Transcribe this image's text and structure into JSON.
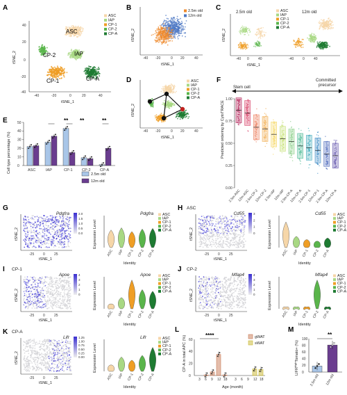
{
  "colors": {
    "ASC": "#f6d6a8",
    "IAP": "#a8d883",
    "CP-1": "#ef9e25",
    "CP-2": "#5ab54b",
    "CP-A": "#1e7b32",
    "2.5m old": "#ef8a2c",
    "12m old": "#4d78c4",
    "gWAT": "#c97b57",
    "sWAT": "#c9b832",
    "bar_young": "#a9c6e8",
    "bar_old": "#6a3d8f"
  },
  "panels": {
    "A": {
      "label": "A",
      "xlabel": "tSNE_1",
      "ylabel": "tSNE_2",
      "xticks": [
        "-40",
        "-20",
        "0",
        "20",
        "40"
      ],
      "yticks": [
        "40",
        "20",
        "0",
        "-20",
        "-40"
      ],
      "cluster_labels": [
        "ASC",
        "IAP",
        "CP-2",
        "CP-1",
        "CP-A"
      ],
      "legend": [
        "ASC",
        "IAP",
        "CP-1",
        "CP-2",
        "CP-A"
      ]
    },
    "B": {
      "label": "B",
      "xlabel": "tSNE_1",
      "ylabel": "tSNE_2",
      "xticks": [
        "-40",
        "-20",
        "0",
        "20",
        "40"
      ],
      "yticks": [
        "40",
        "20",
        "0",
        "-20",
        "-40"
      ],
      "legend": [
        "2.5m old",
        "12m old"
      ]
    },
    "C": {
      "label": "C",
      "xlabel": "tSNE_1",
      "ylabel": "tSNE_2",
      "titles": [
        "2.5m old",
        "12m old"
      ],
      "xticks": [
        "-40",
        "0",
        "40"
      ],
      "yticks": [
        "40",
        "20",
        "0",
        "-20",
        "-40"
      ],
      "legend": [
        "ASC",
        "IAP",
        "CP-1",
        "CP-2",
        "CP-A"
      ]
    },
    "D": {
      "label": "D",
      "xlabel": "tSNE_1",
      "ylabel": "tSNE_2",
      "xticks": [
        "-40",
        "-20",
        "0",
        "20",
        "40"
      ],
      "yticks": [
        "40",
        "20",
        "0",
        "-20",
        "-40"
      ],
      "legend": [
        "ASC",
        "IAP",
        "CP-1",
        "CP-2",
        "CP-A"
      ]
    },
    "E": {
      "label": "E",
      "ylabel": "Cell type percentage (%)",
      "sig": [
        "**",
        "**",
        "**"
      ]
    },
    "F": {
      "label": "F",
      "ylabel": "Predicted ordering by CytoTRACE",
      "left_note": "Stem cell",
      "right_note1": "Committed",
      "right_note2": "precursor",
      "yticks": [
        "1.00",
        "0.75",
        "0.50",
        "0.25",
        "0.00"
      ]
    },
    "G": {
      "label": "G",
      "gene": "Pdgfra",
      "scale": [
        "2.0",
        "1.5",
        "1.0",
        "0.5",
        "0.0"
      ]
    },
    "H": {
      "label": "H",
      "tag": "ASC",
      "gene": "Cd55",
      "scale": [
        "3",
        "2",
        "1",
        "0"
      ]
    },
    "I": {
      "label": "I",
      "tag": "CP-1",
      "gene": "Apoe",
      "scale": [
        "4",
        "3",
        "2",
        "1",
        "0"
      ]
    },
    "J": {
      "label": "J",
      "tag": "CP-2",
      "gene": "Mfap4",
      "scale": [
        "4",
        "3",
        "2",
        "1",
        "0"
      ]
    },
    "K": {
      "label": "K",
      "tag": "CP-A",
      "gene": "Lifr",
      "scale": [
        "1.25",
        "1.00",
        "0.75",
        "0.50",
        "0.25",
        "0.00"
      ]
    },
    "L": {
      "label": "L",
      "ylabel": "CP-A in total APC (%)",
      "xlabel": "Age (month)",
      "sig": "****",
      "yticks": [
        "60",
        "40",
        "20",
        "0"
      ]
    },
    "M": {
      "label": "M",
      "ylabel": "LIFR$^{high}$Tomato+ (%)",
      "sig": "**",
      "yticks": [
        "100",
        "80",
        "60",
        "40",
        "20",
        "0"
      ]
    }
  },
  "violin_common": {
    "ylabel": "Expression Level",
    "xlabel": "Identity",
    "categories": [
      "ASC",
      "IAP",
      "CP-1",
      "CP-2",
      "CP-A"
    ],
    "tsne_xlabel": "tSNE_1",
    "tsne_ylabel": "tSNE_2",
    "tsne_xticks": [
      "-25",
      "0",
      "25"
    ]
  },
  "chart_data": [
    {
      "panel": "E",
      "type": "bar",
      "categories": [
        "ASC",
        "IAP",
        "CP-1",
        "CP-2",
        "CP-A"
      ],
      "ylim": [
        0,
        50
      ],
      "yticks": [
        0,
        10,
        20,
        30,
        40,
        50
      ],
      "series": [
        {
          "name": "2.5m old",
          "values": [
            22,
            27,
            43,
            9,
            1
          ]
        },
        {
          "name": "12m old",
          "values": [
            23,
            34,
            15,
            8,
            20
          ]
        }
      ]
    },
    {
      "panel": "F",
      "type": "box",
      "categories": [
        "2.5m-ASC",
        "12m-ASC",
        "2.5m-CP-2",
        "12m-CP-2",
        "2.5m-IAP",
        "12m-IAP",
        "2.5m-CP-A",
        "12m-CP-A",
        "2.5m-CP-1",
        "12m-CP-1",
        "2.5m-CP-A",
        "12m-CP-A"
      ],
      "medians": [
        0.87,
        0.84,
        0.68,
        0.66,
        0.6,
        0.55,
        0.52,
        0.47,
        0.45,
        0.42,
        0.38,
        0.36
      ],
      "ylim": [
        0,
        1
      ]
    },
    {
      "panel": "L",
      "type": "bar",
      "xlabel": "Age (month)",
      "ylabel": "CP-A in total APC (%)",
      "ylim": [
        0,
        60
      ],
      "series": [
        {
          "name": "gWAT",
          "x": [
            3,
            6,
            9,
            12,
            18
          ],
          "values": [
            0,
            1,
            6,
            35,
            1
          ]
        },
        {
          "name": "sWAT",
          "x": [
            3,
            6,
            9,
            12,
            18
          ],
          "values": [
            0,
            0,
            0,
            11,
            10
          ]
        }
      ]
    },
    {
      "panel": "M",
      "type": "bar",
      "categories": [
        "2.5m old",
        "12m old"
      ],
      "values": [
        18,
        81
      ],
      "ylim": [
        0,
        100
      ]
    }
  ]
}
